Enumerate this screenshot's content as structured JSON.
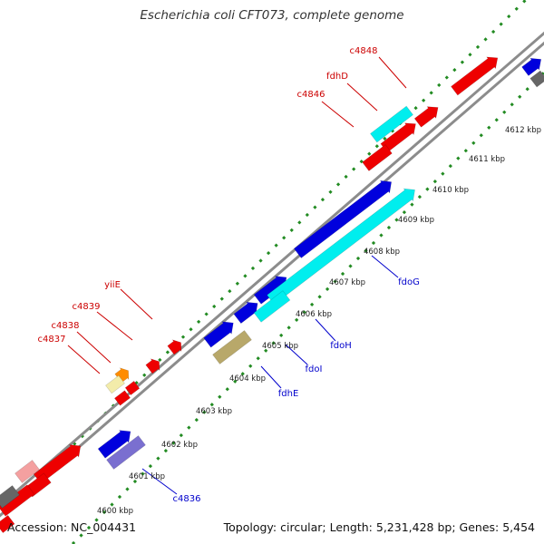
{
  "title": "Escherichia coli CFT073, complete genome",
  "accession": "Accession: NC_004431",
  "summary": "Topology: circular; Length: 5,231,428 bp; Genes: 5,454",
  "colors": {
    "backbone": "#8c8c8c",
    "dots": "#228b22",
    "red": "#ee0000",
    "blue": "#0000dd",
    "cyan": "#00eeee",
    "khaki": "#b8a86a",
    "orange": "#ff8c00",
    "pink": "#f08080",
    "lightpink": "#f4a0a0",
    "paleyellow": "#f3ecaa",
    "gray": "#666666",
    "slateblue": "#7a6fd0",
    "label_red": "#cc0000",
    "label_blue": "#0000cc",
    "tick_text": "#222222"
  },
  "scale_ticks": [
    "4600 kbp",
    "4601 kbp",
    "4602 kbp",
    "4603 kbp",
    "4604 kbp",
    "4605 kbp",
    "4606 kbp",
    "4607 kbp",
    "4608 kbp",
    "4609 kbp",
    "4610 kbp",
    "4611 kbp",
    "4612 kbp"
  ],
  "gene_labels": {
    "top_strand": [
      "c4848",
      "fdhD",
      "c4846",
      "yiiE",
      "c4839",
      "c4838",
      "c4837"
    ],
    "bottom_strand": [
      "fdoG",
      "fdoH",
      "fdoI",
      "fdhE",
      "c4836"
    ]
  }
}
